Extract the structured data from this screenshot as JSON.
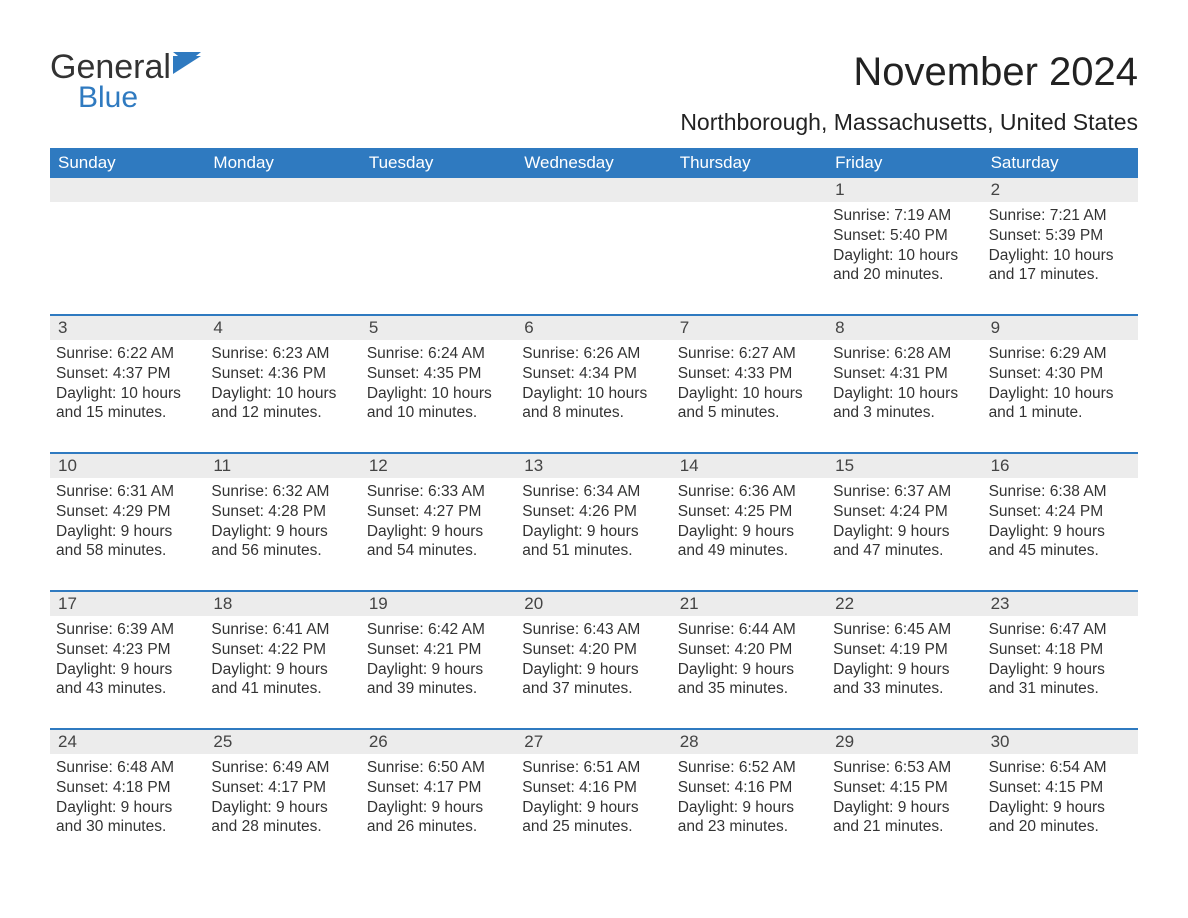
{
  "logo": {
    "text1": "General",
    "text2": "Blue"
  },
  "title": "November 2024",
  "location": "Northborough, Massachusetts, United States",
  "colors": {
    "header_bg": "#2f7ac0",
    "header_text": "#ffffff",
    "daynum_bg": "#ececec",
    "border": "#2f7ac0",
    "text": "#333333",
    "logo_blue": "#2f7ac0"
  },
  "typography": {
    "title_fontsize": 40,
    "location_fontsize": 23,
    "header_fontsize": 17,
    "body_fontsize": 15.5,
    "font_family": "Arial"
  },
  "layout": {
    "columns": 7,
    "rows": 5,
    "start_day_index": 5
  },
  "weekdays": [
    "Sunday",
    "Monday",
    "Tuesday",
    "Wednesday",
    "Thursday",
    "Friday",
    "Saturday"
  ],
  "days": [
    {
      "n": 1,
      "sunrise": "7:19 AM",
      "sunset": "5:40 PM",
      "daylight": "10 hours and 20 minutes."
    },
    {
      "n": 2,
      "sunrise": "7:21 AM",
      "sunset": "5:39 PM",
      "daylight": "10 hours and 17 minutes."
    },
    {
      "n": 3,
      "sunrise": "6:22 AM",
      "sunset": "4:37 PM",
      "daylight": "10 hours and 15 minutes."
    },
    {
      "n": 4,
      "sunrise": "6:23 AM",
      "sunset": "4:36 PM",
      "daylight": "10 hours and 12 minutes."
    },
    {
      "n": 5,
      "sunrise": "6:24 AM",
      "sunset": "4:35 PM",
      "daylight": "10 hours and 10 minutes."
    },
    {
      "n": 6,
      "sunrise": "6:26 AM",
      "sunset": "4:34 PM",
      "daylight": "10 hours and 8 minutes."
    },
    {
      "n": 7,
      "sunrise": "6:27 AM",
      "sunset": "4:33 PM",
      "daylight": "10 hours and 5 minutes."
    },
    {
      "n": 8,
      "sunrise": "6:28 AM",
      "sunset": "4:31 PM",
      "daylight": "10 hours and 3 minutes."
    },
    {
      "n": 9,
      "sunrise": "6:29 AM",
      "sunset": "4:30 PM",
      "daylight": "10 hours and 1 minute."
    },
    {
      "n": 10,
      "sunrise": "6:31 AM",
      "sunset": "4:29 PM",
      "daylight": "9 hours and 58 minutes."
    },
    {
      "n": 11,
      "sunrise": "6:32 AM",
      "sunset": "4:28 PM",
      "daylight": "9 hours and 56 minutes."
    },
    {
      "n": 12,
      "sunrise": "6:33 AM",
      "sunset": "4:27 PM",
      "daylight": "9 hours and 54 minutes."
    },
    {
      "n": 13,
      "sunrise": "6:34 AM",
      "sunset": "4:26 PM",
      "daylight": "9 hours and 51 minutes."
    },
    {
      "n": 14,
      "sunrise": "6:36 AM",
      "sunset": "4:25 PM",
      "daylight": "9 hours and 49 minutes."
    },
    {
      "n": 15,
      "sunrise": "6:37 AM",
      "sunset": "4:24 PM",
      "daylight": "9 hours and 47 minutes."
    },
    {
      "n": 16,
      "sunrise": "6:38 AM",
      "sunset": "4:24 PM",
      "daylight": "9 hours and 45 minutes."
    },
    {
      "n": 17,
      "sunrise": "6:39 AM",
      "sunset": "4:23 PM",
      "daylight": "9 hours and 43 minutes."
    },
    {
      "n": 18,
      "sunrise": "6:41 AM",
      "sunset": "4:22 PM",
      "daylight": "9 hours and 41 minutes."
    },
    {
      "n": 19,
      "sunrise": "6:42 AM",
      "sunset": "4:21 PM",
      "daylight": "9 hours and 39 minutes."
    },
    {
      "n": 20,
      "sunrise": "6:43 AM",
      "sunset": "4:20 PM",
      "daylight": "9 hours and 37 minutes."
    },
    {
      "n": 21,
      "sunrise": "6:44 AM",
      "sunset": "4:20 PM",
      "daylight": "9 hours and 35 minutes."
    },
    {
      "n": 22,
      "sunrise": "6:45 AM",
      "sunset": "4:19 PM",
      "daylight": "9 hours and 33 minutes."
    },
    {
      "n": 23,
      "sunrise": "6:47 AM",
      "sunset": "4:18 PM",
      "daylight": "9 hours and 31 minutes."
    },
    {
      "n": 24,
      "sunrise": "6:48 AM",
      "sunset": "4:18 PM",
      "daylight": "9 hours and 30 minutes."
    },
    {
      "n": 25,
      "sunrise": "6:49 AM",
      "sunset": "4:17 PM",
      "daylight": "9 hours and 28 minutes."
    },
    {
      "n": 26,
      "sunrise": "6:50 AM",
      "sunset": "4:17 PM",
      "daylight": "9 hours and 26 minutes."
    },
    {
      "n": 27,
      "sunrise": "6:51 AM",
      "sunset": "4:16 PM",
      "daylight": "9 hours and 25 minutes."
    },
    {
      "n": 28,
      "sunrise": "6:52 AM",
      "sunset": "4:16 PM",
      "daylight": "9 hours and 23 minutes."
    },
    {
      "n": 29,
      "sunrise": "6:53 AM",
      "sunset": "4:15 PM",
      "daylight": "9 hours and 21 minutes."
    },
    {
      "n": 30,
      "sunrise": "6:54 AM",
      "sunset": "4:15 PM",
      "daylight": "9 hours and 20 minutes."
    }
  ],
  "labels": {
    "sunrise": "Sunrise: ",
    "sunset": "Sunset: ",
    "daylight": "Daylight: "
  }
}
